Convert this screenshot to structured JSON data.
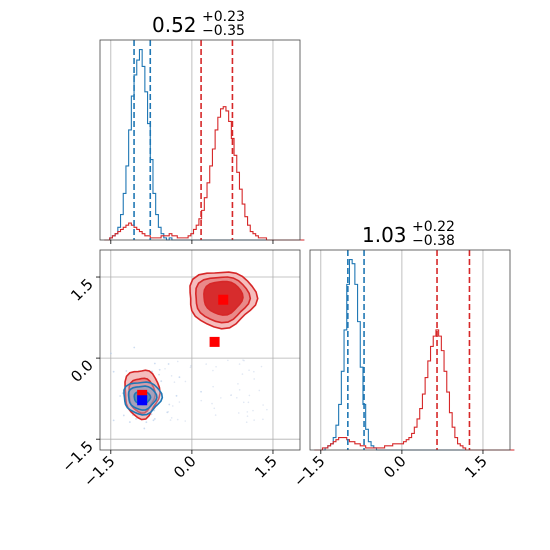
{
  "chart_data": [
    {
      "type": "histogram",
      "panel": "top-left marginal",
      "title": {
        "value": "0.52",
        "plus": "+0.23",
        "minus": "−0.35"
      },
      "xlim": [
        -1.7,
        2.0
      ],
      "xticks": [
        -1.5,
        0.0,
        1.5
      ],
      "grid": true,
      "series": [
        {
          "color": "#1f77b4",
          "bins_from": -1.62,
          "bin_width": 0.05,
          "counts": [
            0,
            0,
            1,
            2,
            3,
            6,
            12,
            22,
            35,
            52,
            68,
            78,
            85,
            90,
            82,
            70,
            55,
            38,
            22,
            12,
            6,
            3,
            1,
            0,
            1,
            0,
            0,
            0,
            0,
            0,
            0,
            0,
            0,
            0,
            0,
            0,
            0,
            0,
            0,
            0,
            0,
            0,
            0,
            0,
            0,
            0,
            0,
            0,
            0,
            0,
            0,
            0,
            0,
            0,
            0,
            0,
            0,
            0,
            0,
            0,
            0,
            0,
            0,
            0,
            0,
            0,
            0,
            0,
            0,
            0,
            0,
            0,
            0,
            0
          ],
          "quantile_lines": [
            -1.07,
            -0.77
          ]
        },
        {
          "color": "#d62728",
          "bins_from": -1.62,
          "bin_width": 0.05,
          "counts": [
            0,
            0,
            1,
            2,
            3,
            4,
            5,
            6,
            7,
            8,
            7,
            6,
            5,
            4,
            3,
            2,
            2,
            1,
            1,
            1,
            1,
            2,
            2,
            2,
            3,
            2,
            2,
            1,
            1,
            1,
            1,
            2,
            3,
            5,
            7,
            10,
            14,
            20,
            27,
            35,
            43,
            52,
            58,
            62,
            63,
            61,
            56,
            48,
            40,
            32,
            24,
            17,
            11,
            7,
            4,
            3,
            2,
            1,
            1,
            1,
            0,
            0,
            0,
            0,
            0,
            0,
            0,
            0,
            0,
            0,
            0,
            0,
            0,
            0
          ],
          "quantile_lines": [
            0.17,
            0.75
          ]
        }
      ]
    },
    {
      "type": "scatter-contour",
      "panel": "bottom-left joint",
      "xlim": [
        -1.7,
        2.0
      ],
      "ylim": [
        -1.7,
        2.0
      ],
      "xticks": [
        -1.5,
        0.0,
        1.5
      ],
      "yticks": [
        -1.5,
        0.0,
        1.5
      ],
      "grid": true,
      "series": [
        {
          "color": "#1f77b4",
          "center": [
            -0.92,
            -0.73
          ],
          "marker": [
            -0.92,
            -0.78
          ],
          "marker_color": "#0000ff"
        },
        {
          "color": "#d62728",
          "center": [
            0.55,
            1.1
          ],
          "markers": [
            [
              0.58,
              1.08
            ],
            [
              0.42,
              0.3
            ],
            [
              -0.92,
              -0.68
            ]
          ],
          "marker_color": "#ff0000"
        }
      ]
    },
    {
      "type": "histogram",
      "panel": "bottom-right marginal",
      "title": {
        "value": "1.03",
        "plus": "+0.22",
        "minus": "−0.38"
      },
      "xlim": [
        -1.7,
        2.0
      ],
      "xticks": [
        -1.5,
        0.0,
        1.5
      ],
      "grid": true,
      "series": [
        {
          "color": "#1f77b4",
          "bins_from": -1.62,
          "bin_width": 0.05,
          "counts": [
            0,
            0,
            0,
            0,
            1,
            2,
            3,
            6,
            12,
            22,
            38,
            58,
            80,
            92,
            90,
            80,
            62,
            40,
            22,
            10,
            4,
            2,
            1,
            0,
            0,
            0,
            0,
            0,
            0,
            0,
            0,
            0,
            0,
            0,
            0,
            0,
            0,
            0,
            0,
            0,
            0,
            0,
            0,
            0,
            0,
            0,
            0,
            0,
            0,
            0,
            0,
            0,
            0,
            0,
            0,
            0,
            0,
            0,
            0,
            0,
            0,
            0,
            0,
            0,
            0,
            0,
            0,
            0,
            0,
            0,
            0,
            0,
            0,
            0
          ],
          "quantile_lines": [
            -1.0,
            -0.7
          ]
        },
        {
          "color": "#d62728",
          "bins_from": -1.62,
          "bin_width": 0.05,
          "counts": [
            0,
            0,
            0,
            1,
            1,
            2,
            3,
            4,
            5,
            6,
            6,
            6,
            5,
            4,
            4,
            3,
            3,
            2,
            2,
            1,
            1,
            1,
            1,
            1,
            1,
            1,
            2,
            2,
            2,
            3,
            3,
            3,
            3,
            4,
            5,
            6,
            8,
            11,
            15,
            20,
            27,
            35,
            43,
            50,
            55,
            58,
            55,
            48,
            38,
            28,
            18,
            11,
            6,
            3,
            2,
            1,
            0,
            0,
            0,
            0,
            0,
            0,
            0,
            0,
            0,
            0,
            0,
            0,
            0,
            0,
            0,
            0,
            0,
            0
          ],
          "quantile_lines": [
            0.65,
            1.25
          ]
        }
      ]
    }
  ]
}
